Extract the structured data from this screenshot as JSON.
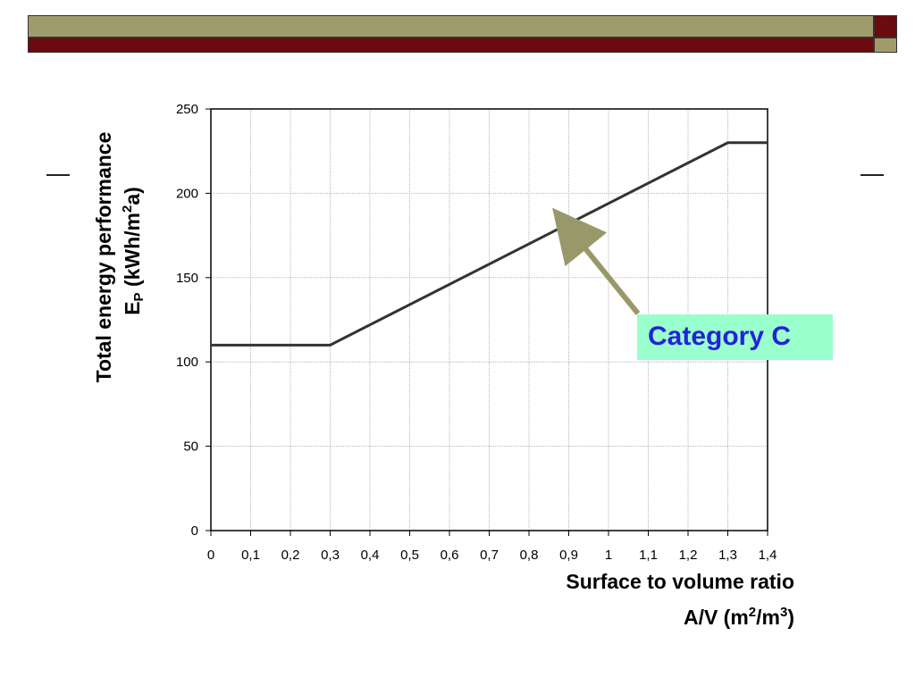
{
  "colors": {
    "olive": "#a09b6a",
    "maroon": "#6b0a0f",
    "line": "#333333",
    "arrow": "#99986a",
    "callout_bg": "#99ffcc",
    "callout_text": "#2323d8"
  },
  "chart_data": {
    "type": "line",
    "title": "",
    "ylabel_line1": "Total energy performance",
    "ylabel_line2_parts": [
      "E",
      "P",
      " (kWh/m",
      "2",
      "a)"
    ],
    "xlabel_line1": "Surface to volume ratio",
    "xlabel_line2_parts": [
      "A/V (m",
      "2",
      "/m",
      "3",
      ")"
    ],
    "xlim": [
      0,
      1.4
    ],
    "ylim": [
      0,
      250
    ],
    "x_ticks": [
      0,
      0.1,
      0.2,
      0.3,
      0.4,
      0.5,
      0.6,
      0.7,
      0.8,
      0.9,
      1,
      1.1,
      1.2,
      1.3,
      1.4
    ],
    "x_tick_labels": [
      "0",
      "0,1",
      "0,2",
      "0,3",
      "0,4",
      "0,5",
      "0,6",
      "0,7",
      "0,8",
      "0,9",
      "1",
      "1,1",
      "1,2",
      "1,3",
      "1,4"
    ],
    "y_ticks": [
      0,
      50,
      100,
      150,
      200,
      250
    ],
    "y_tick_labels": [
      "0",
      "50",
      "100",
      "150",
      "200",
      "250"
    ],
    "grid": true,
    "series": [
      {
        "x": [
          0,
          0.3,
          1.3,
          1.4
        ],
        "y": [
          110,
          110,
          230,
          230
        ]
      }
    ],
    "annotation": {
      "text": "Category C",
      "arrow_to": {
        "x": 0.9,
        "y": 181
      }
    }
  }
}
